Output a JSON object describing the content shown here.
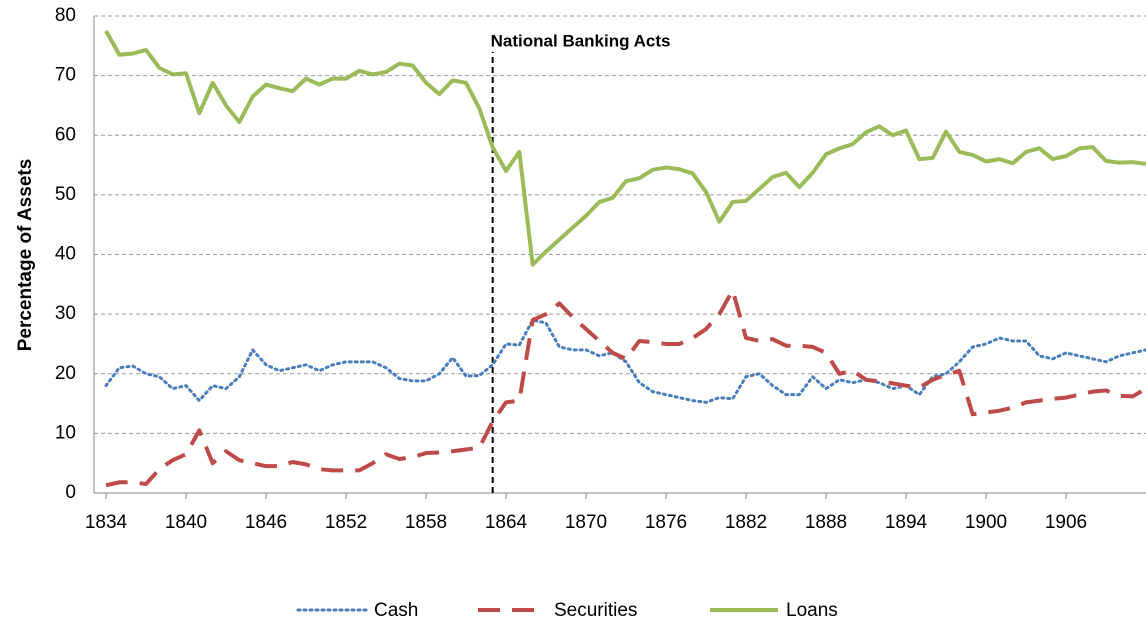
{
  "chart_data": {
    "type": "line",
    "ylabel": "Percentage of Assets",
    "annotation": {
      "x": 1863,
      "text": "National Banking Acts"
    },
    "x": [
      1834,
      1835,
      1836,
      1837,
      1838,
      1839,
      1840,
      1841,
      1842,
      1843,
      1844,
      1845,
      1846,
      1847,
      1848,
      1849,
      1850,
      1851,
      1852,
      1853,
      1854,
      1855,
      1856,
      1857,
      1858,
      1859,
      1860,
      1861,
      1862,
      1863,
      1864,
      1865,
      1866,
      1867,
      1868,
      1869,
      1870,
      1871,
      1872,
      1873,
      1874,
      1875,
      1876,
      1877,
      1878,
      1879,
      1880,
      1881,
      1882,
      1883,
      1884,
      1885,
      1886,
      1887,
      1888,
      1889,
      1890,
      1891,
      1892,
      1893,
      1894,
      1895,
      1896,
      1897,
      1898,
      1899,
      1900,
      1901,
      1902,
      1903,
      1904,
      1905,
      1906,
      1907,
      1908,
      1909,
      1910,
      1911,
      1912
    ],
    "series": [
      {
        "name": "Cash",
        "color": "#4a7ebb",
        "dash": "2 4",
        "values": [
          18,
          21,
          21.3,
          20,
          19.5,
          17.5,
          18,
          15.5,
          18,
          17.5,
          19.5,
          24,
          21.5,
          20.5,
          21,
          21.5,
          20.5,
          21.5,
          22,
          22,
          22,
          21,
          19.2,
          18.8,
          18.8,
          20,
          22.7,
          19.6,
          19.7,
          21.5,
          25,
          24.8,
          29,
          28.5,
          24.5,
          24,
          24,
          23,
          23.5,
          22,
          18.5,
          17,
          16.5,
          16,
          15.5,
          15.2,
          16,
          15.8,
          19.5,
          20,
          18,
          16.5,
          16.5,
          19.5,
          17.5,
          19,
          18.5,
          19,
          18.5,
          17.5,
          18,
          16.5,
          19.5,
          20,
          22,
          24.5,
          25,
          26,
          25.5,
          25.5,
          23,
          22.5,
          23.5,
          23,
          22.5,
          22,
          23,
          23.5,
          24
        ]
      },
      {
        "name": "Securities",
        "color": "#be4b48",
        "dash": "22 12",
        "values": [
          1.3,
          1.8,
          1.8,
          1.5,
          4,
          5.5,
          6.5,
          10.5,
          5,
          7,
          5.5,
          5,
          4.5,
          4.5,
          5.2,
          4.8,
          4,
          3.8,
          3.8,
          3.8,
          5,
          6.5,
          5.7,
          6,
          6.7,
          6.8,
          7,
          7.3,
          7.6,
          12,
          15.2,
          15.5,
          29,
          30,
          31.8,
          29.5,
          27.5,
          25.5,
          23.5,
          22.5,
          25.5,
          25.3,
          25,
          25,
          26,
          27.5,
          30,
          34,
          26,
          25.5,
          25.8,
          24.7,
          24.7,
          24.5,
          23.5,
          20,
          20.5,
          19,
          18.7,
          18.4,
          18,
          17.7,
          19,
          19.8,
          20.5,
          13.2,
          13.5,
          13.8,
          14.3,
          15.2,
          15.5,
          15.8,
          16,
          16.5,
          17,
          17.2,
          16.3,
          16.2,
          17.5
        ]
      },
      {
        "name": "Loans",
        "color": "#9bbb59",
        "dash": "",
        "values": [
          77.5,
          73.5,
          73.7,
          74.3,
          71.3,
          70.2,
          70.4,
          63.7,
          68.8,
          65,
          62.2,
          66.5,
          68.5,
          67.9,
          67.4,
          69.5,
          68.5,
          69.5,
          69.5,
          70.8,
          70.2,
          70.6,
          72,
          71.7,
          68.8,
          66.9,
          69.2,
          68.8,
          64.5,
          58,
          54,
          57.2,
          38.3,
          40.5,
          42.5,
          44.5,
          46.5,
          48.8,
          49.5,
          52.3,
          52.8,
          54.2,
          54.6,
          54.3,
          53.6,
          50.5,
          45.5,
          48.8,
          49,
          51,
          53,
          53.7,
          51.3,
          53.7,
          56.8,
          57.8,
          58.5,
          60.5,
          61.5,
          60,
          60.8,
          56,
          56.2,
          60.6,
          57.2,
          56.7,
          55.6,
          56,
          55.3,
          57.2,
          57.8,
          56,
          56.5,
          57.8,
          58,
          55.7,
          55.4,
          55.5,
          55.2
        ]
      }
    ],
    "xlim": [
      1833.1,
      1912
    ],
    "xticks": [
      1834,
      1840,
      1846,
      1852,
      1858,
      1864,
      1870,
      1876,
      1882,
      1888,
      1894,
      1900,
      1906
    ],
    "ylim": [
      0,
      80
    ],
    "yticks": [
      0,
      10,
      20,
      30,
      40,
      50,
      60,
      70,
      80
    ],
    "grid": true,
    "legend": "bottom"
  }
}
